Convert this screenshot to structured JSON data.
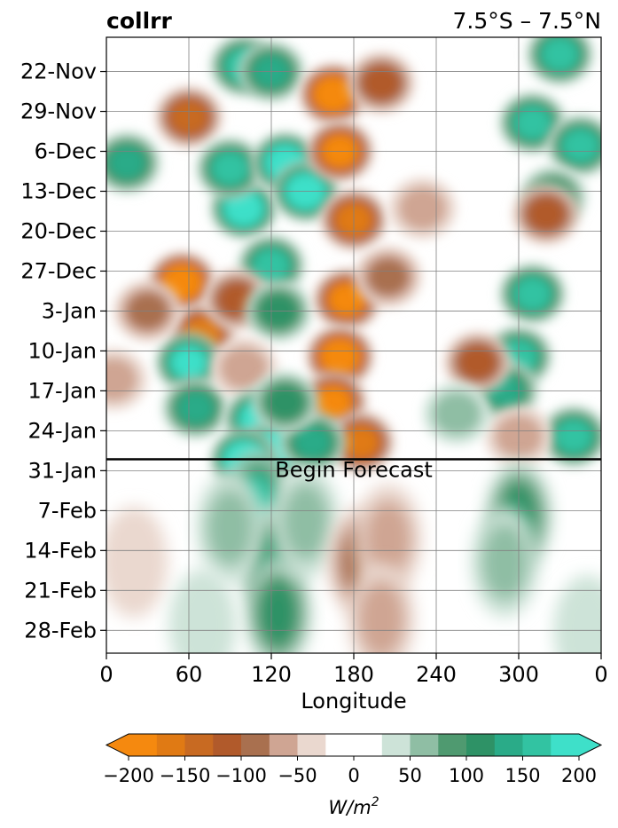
{
  "chart_data": {
    "type": "heatmap",
    "title_left": "collrr",
    "title_right": "7.5°S – 7.5°N",
    "xlabel": "Longitude",
    "x_ticks": [
      "0",
      "60",
      "120",
      "180",
      "240",
      "300",
      "0"
    ],
    "x_tick_values": [
      0,
      60,
      120,
      180,
      240,
      300,
      360
    ],
    "xlim": [
      0,
      360
    ],
    "y_ticks": [
      "22-Nov",
      "29-Nov",
      "6-Dec",
      "13-Dec",
      "20-Dec",
      "27-Dec",
      "3-Jan",
      "10-Jan",
      "17-Jan",
      "24-Jan",
      "31-Jan",
      "7-Feb",
      "14-Feb",
      "21-Feb",
      "28-Feb"
    ],
    "y_tick_days": [
      6,
      13,
      20,
      27,
      34,
      41,
      48,
      55,
      62,
      69,
      76,
      83,
      90,
      97,
      104
    ],
    "ylim_days": [
      0,
      108
    ],
    "forecast_start_day": 74,
    "forecast_label": "Begin Forecast",
    "grid": true,
    "colorbar": {
      "label": "W/m²",
      "label_base": "W/m",
      "label_exp": "2",
      "tick_labels": [
        "−200",
        "−150",
        "−100",
        "−50",
        "0",
        "50",
        "100",
        "150",
        "200"
      ],
      "tick_values": [
        -200,
        -150,
        -100,
        -50,
        0,
        50,
        100,
        150,
        200
      ],
      "levels": [
        -200,
        -175,
        -150,
        -125,
        -100,
        -75,
        -50,
        -25,
        25,
        50,
        75,
        100,
        125,
        150,
        175,
        200
      ],
      "colors": [
        "#f5890f",
        "#e07a14",
        "#c86a22",
        "#b15a2b",
        "#a9704f",
        "#cfa593",
        "#ead8cf",
        "#ffffff",
        "#cde3d8",
        "#8fbea4",
        "#4f9a70",
        "#2e9266",
        "#2aab88",
        "#32c3a2",
        "#3ee0c9"
      ],
      "extend": "both"
    },
    "anomaly_blobs": [
      {
        "lon": 15,
        "day": 22,
        "value": 130
      },
      {
        "lon": 60,
        "day": 14,
        "value": -120
      },
      {
        "lon": 55,
        "day": 43,
        "value": -200
      },
      {
        "lon": 70,
        "day": 52,
        "value": -150
      },
      {
        "lon": 60,
        "day": 57,
        "value": 180
      },
      {
        "lon": 65,
        "day": 65,
        "value": 120
      },
      {
        "lon": 30,
        "day": 48,
        "value": -80
      },
      {
        "lon": 100,
        "day": 30,
        "value": 200
      },
      {
        "lon": 90,
        "day": 23,
        "value": 150
      },
      {
        "lon": 130,
        "day": 22,
        "value": 190
      },
      {
        "lon": 145,
        "day": 27,
        "value": 190
      },
      {
        "lon": 120,
        "day": 40,
        "value": 160
      },
      {
        "lon": 100,
        "day": 5,
        "value": 140
      },
      {
        "lon": 120,
        "day": 6,
        "value": 130
      },
      {
        "lon": 95,
        "day": 46,
        "value": -90
      },
      {
        "lon": 125,
        "day": 48,
        "value": 110
      },
      {
        "lon": 100,
        "day": 58,
        "value": -60
      },
      {
        "lon": 165,
        "day": 10,
        "value": -200
      },
      {
        "lon": 170,
        "day": 20,
        "value": -170
      },
      {
        "lon": 180,
        "day": 32,
        "value": -160
      },
      {
        "lon": 175,
        "day": 46,
        "value": -180
      },
      {
        "lon": 170,
        "day": 56,
        "value": -200
      },
      {
        "lon": 165,
        "day": 64,
        "value": -170
      },
      {
        "lon": 185,
        "day": 71,
        "value": -150
      },
      {
        "lon": 200,
        "day": 8,
        "value": -110
      },
      {
        "lon": 205,
        "day": 42,
        "value": -80
      },
      {
        "lon": 230,
        "day": 30,
        "value": -50
      },
      {
        "lon": 110,
        "day": 67,
        "value": 180
      },
      {
        "lon": 125,
        "day": 72,
        "value": 200
      },
      {
        "lon": 100,
        "day": 74,
        "value": 200
      },
      {
        "lon": 150,
        "day": 71,
        "value": 120
      },
      {
        "lon": 130,
        "day": 64,
        "value": 110
      },
      {
        "lon": 330,
        "day": 3,
        "value": 140
      },
      {
        "lon": 310,
        "day": 15,
        "value": 160
      },
      {
        "lon": 345,
        "day": 19,
        "value": 150
      },
      {
        "lon": 325,
        "day": 28,
        "value": 110
      },
      {
        "lon": 310,
        "day": 45,
        "value": 150
      },
      {
        "lon": 300,
        "day": 56,
        "value": 140
      },
      {
        "lon": 290,
        "day": 62,
        "value": 120
      },
      {
        "lon": 340,
        "day": 70,
        "value": 140
      },
      {
        "lon": 320,
        "day": 31,
        "value": -90
      },
      {
        "lon": 270,
        "day": 57,
        "value": -100
      },
      {
        "lon": 300,
        "day": 70,
        "value": -60
      },
      {
        "lon": 255,
        "day": 66,
        "value": 60
      },
      {
        "lon": 5,
        "day": 60,
        "value": -50
      },
      {
        "lon": 110,
        "day": 82,
        "value": 140
      },
      {
        "lon": 120,
        "day": 92,
        "value": 110
      },
      {
        "lon": 125,
        "day": 101,
        "value": 100
      },
      {
        "lon": 90,
        "day": 86,
        "value": 60
      },
      {
        "lon": 145,
        "day": 85,
        "value": 50
      },
      {
        "lon": 185,
        "day": 92,
        "value": -70
      },
      {
        "lon": 205,
        "day": 88,
        "value": -45
      },
      {
        "lon": 200,
        "day": 102,
        "value": -40
      },
      {
        "lon": 300,
        "day": 84,
        "value": 90
      },
      {
        "lon": 290,
        "day": 92,
        "value": 40
      },
      {
        "lon": 350,
        "day": 104,
        "value": 30
      },
      {
        "lon": 20,
        "day": 92,
        "value": -30
      },
      {
        "lon": 70,
        "day": 103,
        "value": 25
      }
    ]
  }
}
